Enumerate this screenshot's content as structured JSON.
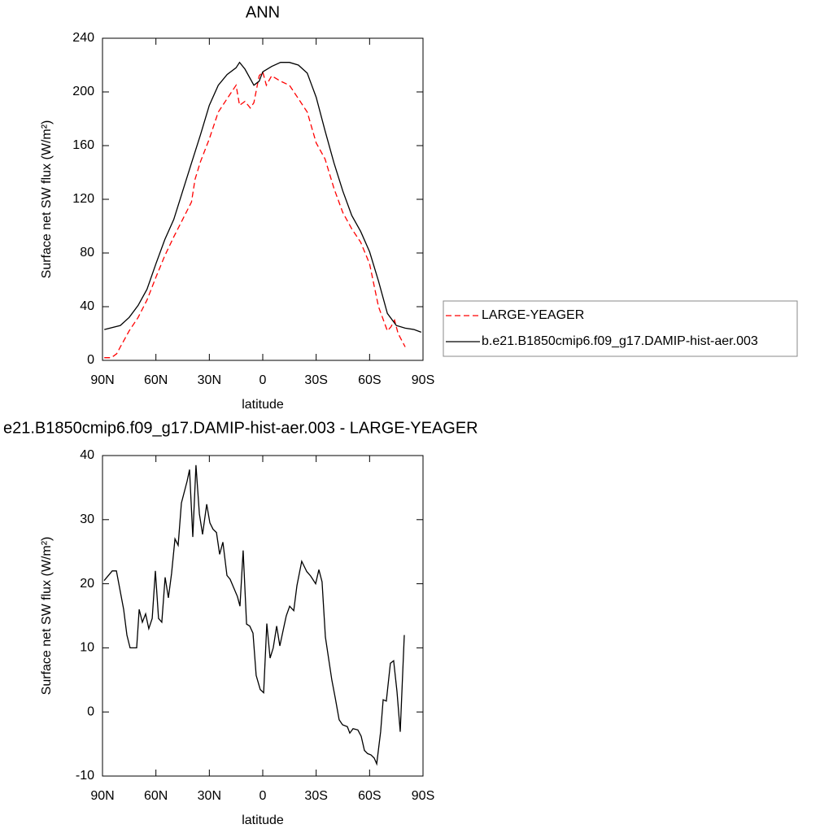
{
  "chart_data": [
    {
      "type": "line",
      "title": "ANN",
      "xlabel": "latitude",
      "ylabel": "Surface net SW flux (W/m²)",
      "xlim": [
        90,
        -90
      ],
      "xticks": [
        {
          "value": 90,
          "label": "90N"
        },
        {
          "value": 60,
          "label": "60N"
        },
        {
          "value": 30,
          "label": "30N"
        },
        0,
        {
          "value": -30,
          "label": "30S"
        },
        {
          "value": -60,
          "label": "60S"
        },
        {
          "value": -90,
          "label": "90S"
        }
      ],
      "ylim": [
        0,
        240
      ],
      "yticks": [
        0,
        40,
        80,
        120,
        160,
        200,
        240
      ],
      "legend": "right",
      "series": [
        {
          "name": "LARGE-YEAGER",
          "color": "#ff0000",
          "dash": "dashed",
          "x": [
            89,
            85,
            82,
            80,
            75,
            70,
            65,
            60,
            55,
            50,
            45,
            40,
            38,
            35,
            30,
            25,
            20,
            15,
            13,
            10,
            7,
            5,
            2,
            0,
            -2,
            -5,
            -10,
            -15,
            -20,
            -25,
            -30,
            -35,
            -40,
            -45,
            -50,
            -55,
            -60,
            -65,
            -70,
            -72,
            -74,
            -76,
            -80
          ],
          "values": [
            2,
            2,
            5,
            10,
            22,
            32,
            45,
            62,
            78,
            92,
            105,
            118,
            135,
            148,
            165,
            185,
            195,
            205,
            190,
            193,
            188,
            192,
            212,
            215,
            205,
            212,
            208,
            205,
            195,
            185,
            162,
            150,
            128,
            110,
            98,
            88,
            72,
            40,
            22,
            25,
            30,
            20,
            10
          ]
        },
        {
          "name": "b.e21.B1850cmip6.f09_g17.DAMIP-hist-aer.003",
          "color": "#000000",
          "dash": "solid",
          "x": [
            89,
            80,
            75,
            70,
            65,
            60,
            55,
            50,
            45,
            40,
            35,
            30,
            25,
            20,
            15,
            13,
            10,
            5,
            2,
            0,
            -5,
            -10,
            -15,
            -20,
            -25,
            -30,
            -35,
            -40,
            -45,
            -50,
            -55,
            -60,
            -65,
            -70,
            -75,
            -80,
            -85,
            -89
          ],
          "values": [
            23,
            26,
            32,
            41,
            53,
            72,
            90,
            105,
            126,
            147,
            168,
            190,
            205,
            213,
            218,
            222,
            217,
            205,
            208,
            215,
            219,
            222,
            222,
            220,
            214,
            196,
            171,
            147,
            126,
            108,
            96,
            81,
            59,
            35,
            26,
            24,
            23,
            21
          ]
        }
      ]
    },
    {
      "type": "line",
      "title": "e21.B1850cmip6.f09_g17.DAMIP-hist-aer.003 - LARGE-YEAGER",
      "xlabel": "latitude",
      "ylabel": "Surface net SW flux (W/m²)",
      "xlim": [
        90,
        -90
      ],
      "xticks": [
        {
          "value": 90,
          "label": "90N"
        },
        {
          "value": 60,
          "label": "60N"
        },
        {
          "value": 30,
          "label": "30N"
        },
        0,
        {
          "value": -30,
          "label": "30S"
        },
        {
          "value": -60,
          "label": "60S"
        },
        {
          "value": -90,
          "label": "90S"
        }
      ],
      "ylim": [
        -10,
        40
      ],
      "yticks": [
        -10,
        0,
        10,
        20,
        30,
        40
      ],
      "series": [
        {
          "color": "#000000",
          "dash": "solid",
          "x": [
            89.1,
            84.5,
            82.2,
            78.1,
            76.3,
            74.5,
            72.6,
            70.8,
            69.4,
            67.6,
            65.8,
            64.0,
            62.1,
            60.3,
            58.5,
            56.7,
            54.8,
            53.0,
            51.2,
            49.3,
            47.5,
            45.7,
            42.5,
            41.1,
            39.3,
            37.5,
            35.6,
            33.8,
            31.5,
            29.7,
            27.9,
            26.0,
            24.2,
            22.4,
            20.1,
            18.3,
            14.2,
            12.8,
            11.0,
            9.1,
            7.3,
            5.5,
            3.7,
            1.4,
            -0.5,
            -2.3,
            -4.1,
            -5.9,
            -7.8,
            -9.6,
            -11.4,
            -13.2,
            -15.1,
            -17.4,
            -19.2,
            -21.9,
            -24.7,
            -26.9,
            -29.7,
            -31.5,
            -33.3,
            -35.2,
            -37.0,
            -38.8,
            -40.7,
            -42.9,
            -44.8,
            -47.5,
            -48.9,
            -50.7,
            -53.4,
            -55.3,
            -57.1,
            -58.9,
            -60.8,
            -62.6,
            -64.0,
            -66.2,
            -67.6,
            -69.4,
            -71.7,
            -73.5,
            -75.4,
            -77.2,
            -79.5
          ],
          "values": [
            20.5,
            22,
            22,
            16,
            12,
            10,
            10,
            10,
            16,
            14,
            15.3,
            13,
            14.6,
            22,
            14.6,
            14,
            21,
            17.8,
            21.6,
            27,
            26,
            32.6,
            36,
            37.8,
            27.3,
            38.5,
            30.9,
            27.7,
            32.4,
            29.5,
            28.5,
            28,
            24.6,
            26.5,
            21.3,
            20.7,
            18,
            16.5,
            25.2,
            13.7,
            13.4,
            12.3,
            5.7,
            3.5,
            3,
            13.8,
            8.4,
            10,
            13.4,
            10.3,
            12.7,
            15,
            16.5,
            15.8,
            19.7,
            23.5,
            21.9,
            21.2,
            20,
            22.2,
            20.3,
            11.7,
            8.3,
            5,
            2.2,
            -1.2,
            -2,
            -2.3,
            -3.3,
            -2.6,
            -2.8,
            -3.8,
            -6,
            -6.5,
            -6.7,
            -7.2,
            -8.1,
            -3.1,
            1.9,
            1.7,
            7.6,
            8,
            3.2,
            -3.1,
            12
          ]
        }
      ]
    }
  ]
}
